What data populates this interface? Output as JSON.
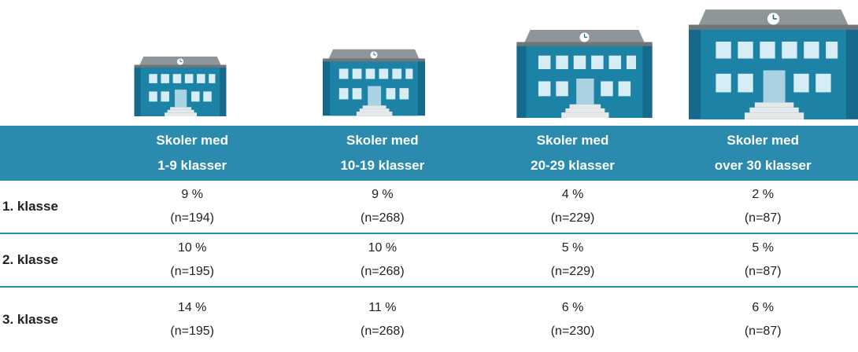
{
  "table": {
    "header": [
      {
        "line1": "Skoler med",
        "line2": "1-9 klasser"
      },
      {
        "line1": "Skoler med",
        "line2": "10-19 klasser"
      },
      {
        "line1": "Skoler med",
        "line2": "20-29 klasser"
      },
      {
        "line1": "Skoler med",
        "line2": "over 30 klasser"
      }
    ],
    "rows": [
      {
        "label": "1. klasse",
        "cells": [
          {
            "share": "9 %",
            "n": "(n=194)"
          },
          {
            "share": "9 %",
            "n": "(n=268)"
          },
          {
            "share": "4 %",
            "n": "(n=229)"
          },
          {
            "share": "2 %",
            "n": "(n=87)"
          }
        ]
      },
      {
        "label": "2. klasse",
        "cells": [
          {
            "share": "10 %",
            "n": "(n=195)"
          },
          {
            "share": "10 %",
            "n": "(n=268)"
          },
          {
            "share": "5 %",
            "n": "(n=229)"
          },
          {
            "share": "5 %",
            "n": "(n=87)"
          }
        ]
      },
      {
        "label": "3. klasse",
        "cells": [
          {
            "share": "14 %",
            "n": "(n=195)"
          },
          {
            "share": "11 %",
            "n": "(n=268)"
          },
          {
            "share": "6 %",
            "n": "(n=230)"
          },
          {
            "share": "6 %",
            "n": "(n=87)"
          }
        ]
      }
    ]
  }
}
